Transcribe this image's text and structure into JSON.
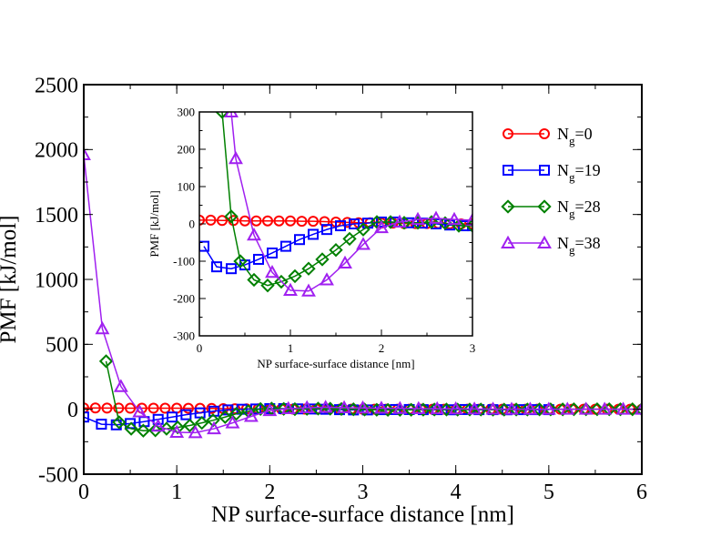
{
  "chart_data": [
    {
      "type": "line",
      "panel": "main",
      "xlabel": "NP surface-surface distance [nm]",
      "ylabel": "PMF [kJ/mol]",
      "xlim": [
        0,
        6
      ],
      "ylim": [
        -500,
        2500
      ],
      "xticks": [
        "0",
        "1",
        "2",
        "3",
        "4",
        "5",
        "6"
      ],
      "yticks": [
        "-500",
        "0",
        "500",
        "1000",
        "1500",
        "2000",
        "2500"
      ],
      "series": [
        {
          "name": "Ng=0",
          "color": "#ff0000",
          "marker": "circle",
          "x": [
            0,
            0.125,
            0.25,
            0.375,
            0.5,
            0.625,
            0.75,
            0.875,
            1.0,
            1.125,
            1.25,
            1.375,
            1.5,
            1.625,
            1.75,
            1.875,
            2.0,
            2.125,
            2.25,
            2.375,
            2.5,
            2.625,
            2.75,
            2.875,
            3.0,
            3.125,
            3.25,
            3.375,
            3.5,
            3.625,
            3.75,
            3.875,
            4.0,
            4.125,
            4.25,
            4.375,
            4.5,
            4.625,
            4.75,
            4.875,
            5.0,
            5.125,
            5.25,
            5.375,
            5.5,
            5.625,
            5.75,
            5.875,
            6.0
          ],
          "y": [
            10,
            10,
            9,
            9,
            8,
            8,
            8,
            8,
            8,
            7,
            7,
            6,
            5,
            4,
            3,
            3,
            2,
            2,
            1,
            1,
            1,
            1,
            0,
            0,
            0,
            0,
            0,
            0,
            0,
            0,
            0,
            0,
            0,
            0,
            0,
            0,
            0,
            0,
            0,
            0,
            0,
            0,
            0,
            0,
            0,
            0,
            0,
            0,
            0
          ]
        },
        {
          "name": "Ng=19",
          "color": "#0000ff",
          "marker": "square",
          "x": [
            0,
            0.19,
            0.35,
            0.5,
            0.65,
            0.8,
            0.95,
            1.1,
            1.25,
            1.4,
            1.55,
            1.7,
            1.85,
            2.0,
            2.15,
            2.3,
            2.45,
            2.6,
            2.75,
            2.9,
            3.05,
            3.2,
            3.35,
            3.5,
            3.65,
            3.8,
            3.95,
            4.1,
            4.25,
            4.4,
            4.55,
            4.7,
            4.85,
            5.0
          ],
          "y": [
            -60,
            -115,
            -120,
            -110,
            -95,
            -78,
            -60,
            -42,
            -28,
            -15,
            -5,
            0,
            2,
            5,
            5,
            3,
            2,
            0,
            -3,
            -5,
            -5,
            -3,
            -2,
            -2,
            -3,
            -3,
            -4,
            -2,
            -3,
            -3,
            -4,
            -3,
            -3,
            -3
          ]
        },
        {
          "name": "Ng=28",
          "color": "#008000",
          "marker": "diamond",
          "x": [
            0.24,
            0.38,
            0.51,
            0.64,
            0.77,
            0.89,
            1.01,
            1.14,
            1.27,
            1.39,
            1.52,
            1.64,
            1.77,
            1.9,
            2.02,
            2.15,
            2.27,
            2.4,
            2.52,
            2.65,
            2.77,
            2.9,
            3.02,
            3.15,
            3.27,
            3.4,
            3.52,
            3.65,
            3.77,
            3.9,
            4.02,
            4.15,
            4.27,
            4.4,
            4.52,
            4.65,
            4.77,
            4.9,
            5.02,
            5.15,
            5.27,
            5.4,
            5.52,
            5.65,
            5.77,
            5.9,
            6.0
          ],
          "y": [
            370,
            -100,
            -150,
            -165,
            -162,
            -150,
            -140,
            -125,
            -105,
            -85,
            -60,
            -35,
            -15,
            2,
            5,
            3,
            1,
            3,
            5,
            4,
            2,
            0,
            -2,
            -4,
            -5,
            -5,
            -4,
            -3,
            -2,
            -2,
            -3,
            -2,
            -2,
            -3,
            -3,
            -2,
            -2,
            -1,
            -1,
            -1,
            0,
            0,
            0,
            0,
            0,
            0,
            0
          ]
        },
        {
          "name": "Ng=38",
          "color": "#a020f0",
          "marker": "triangle",
          "x": [
            0,
            0.2,
            0.4,
            0.6,
            0.8,
            1.0,
            1.2,
            1.4,
            1.6,
            1.8,
            2.0,
            2.2,
            2.4,
            2.6,
            2.8,
            3.0,
            3.2,
            3.4,
            3.6,
            3.8,
            4.0,
            4.2,
            4.4,
            4.6,
            4.8,
            5.0,
            5.2,
            5.4,
            5.6,
            5.8,
            6.0
          ],
          "y": [
            1960,
            620,
            175,
            -20,
            -130,
            -178,
            -180,
            -150,
            -105,
            -55,
            -10,
            5,
            12,
            15,
            12,
            10,
            8,
            6,
            5,
            4,
            3,
            2,
            1,
            0,
            0,
            0,
            0,
            0,
            0,
            0,
            0
          ]
        }
      ]
    },
    {
      "type": "line",
      "panel": "inset",
      "xlabel": "NP surface-surface distance [nm]",
      "ylabel": "PMF [kJ/mol]",
      "xlim": [
        0,
        3
      ],
      "ylim": [
        -300,
        300
      ],
      "xticks": [
        "0",
        "1",
        "2",
        "3"
      ],
      "yticks": [
        "-300",
        "-200",
        "-100",
        "0",
        "100",
        "200",
        "300"
      ],
      "series": [
        {
          "name": "Ng=0",
          "color": "#ff0000",
          "marker": "circle",
          "x": [
            0,
            0.125,
            0.25,
            0.375,
            0.5,
            0.625,
            0.75,
            0.875,
            1.0,
            1.125,
            1.25,
            1.375,
            1.5,
            1.625,
            1.75,
            1.875,
            2.0,
            2.125,
            2.25,
            2.375,
            2.5,
            2.625,
            2.75,
            2.875,
            3.0
          ],
          "y": [
            10,
            10,
            9,
            9,
            8,
            8,
            8,
            8,
            8,
            7,
            7,
            6,
            5,
            4,
            3,
            3,
            2,
            2,
            1,
            1,
            1,
            1,
            0,
            0,
            0
          ]
        },
        {
          "name": "Ng=19",
          "color": "#0000ff",
          "marker": "square",
          "x": [
            0.05,
            0.19,
            0.35,
            0.5,
            0.65,
            0.8,
            0.95,
            1.1,
            1.25,
            1.4,
            1.55,
            1.7,
            1.85,
            2.0,
            2.15,
            2.3,
            2.45,
            2.6,
            2.75,
            2.9,
            3.0
          ],
          "y": [
            -60,
            -115,
            -120,
            -110,
            -95,
            -78,
            -60,
            -42,
            -28,
            -15,
            -5,
            0,
            2,
            5,
            5,
            3,
            2,
            0,
            -3,
            -5,
            -5
          ]
        },
        {
          "name": "Ng=28",
          "color": "#008000",
          "marker": "diamond",
          "x": [
            0.25,
            0.35,
            0.45,
            0.6,
            0.75,
            0.9,
            1.05,
            1.2,
            1.35,
            1.5,
            1.65,
            1.8,
            1.95,
            2.1,
            2.25,
            2.4,
            2.55,
            2.7,
            2.85,
            3.0
          ],
          "y": [
            300,
            20,
            -100,
            -150,
            -165,
            -155,
            -140,
            -120,
            -95,
            -70,
            -40,
            -15,
            5,
            5,
            3,
            3,
            5,
            2,
            -5,
            -5
          ]
        },
        {
          "name": "Ng=38",
          "color": "#a020f0",
          "marker": "triangle",
          "x": [
            0.35,
            0.4,
            0.6,
            0.8,
            1.0,
            1.2,
            1.4,
            1.6,
            1.8,
            2.0,
            2.2,
            2.4,
            2.6,
            2.8,
            3.0
          ],
          "y": [
            300,
            175,
            -30,
            -130,
            -178,
            -180,
            -150,
            -105,
            -55,
            -10,
            5,
            12,
            15,
            12,
            10
          ]
        }
      ]
    }
  ],
  "legend": {
    "items": [
      {
        "prefix": "N",
        "sub": "g",
        "suffix": "=0",
        "color": "#ff0000",
        "marker": "circle"
      },
      {
        "prefix": "N",
        "sub": "g",
        "suffix": "=19",
        "color": "#0000ff",
        "marker": "square"
      },
      {
        "prefix": "N",
        "sub": "g",
        "suffix": "=28",
        "color": "#008000",
        "marker": "diamond"
      },
      {
        "prefix": "N",
        "sub": "g",
        "suffix": "=38",
        "color": "#a020f0",
        "marker": "triangle"
      }
    ]
  }
}
